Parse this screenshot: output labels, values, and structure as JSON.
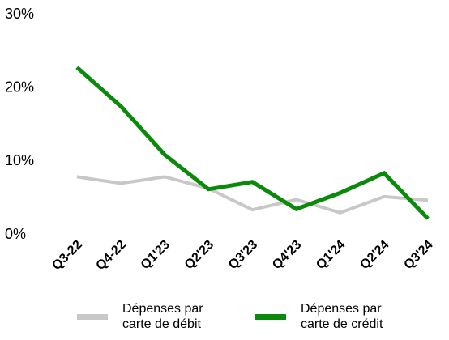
{
  "chart_data": {
    "type": "line",
    "categories": [
      "Q3-22",
      "Q4-22",
      "Q1'23",
      "Q2'23",
      "Q3'23",
      "Q4'23",
      "Q1'24",
      "Q2'24",
      "Q3'24"
    ],
    "series": [
      {
        "name": "Dépenses par carte de débit",
        "color": "#c8c8c8",
        "values": [
          7.9,
          7.0,
          7.9,
          6.3,
          3.4,
          4.8,
          3.0,
          5.2,
          4.7
        ]
      },
      {
        "name": "Dépenses par carte de crédit",
        "color": "#0a8a0a",
        "values": [
          22.8,
          17.5,
          10.9,
          6.2,
          7.2,
          3.5,
          5.7,
          8.4,
          2.2
        ]
      }
    ],
    "ylim": [
      0,
      30
    ],
    "yticks": [
      {
        "value": 0,
        "label": "0%"
      },
      {
        "value": 10,
        "label": "10%"
      },
      {
        "value": 20,
        "label": "20%"
      },
      {
        "value": 30,
        "label": "30%"
      }
    ],
    "grid": false,
    "legend": "bottom"
  }
}
